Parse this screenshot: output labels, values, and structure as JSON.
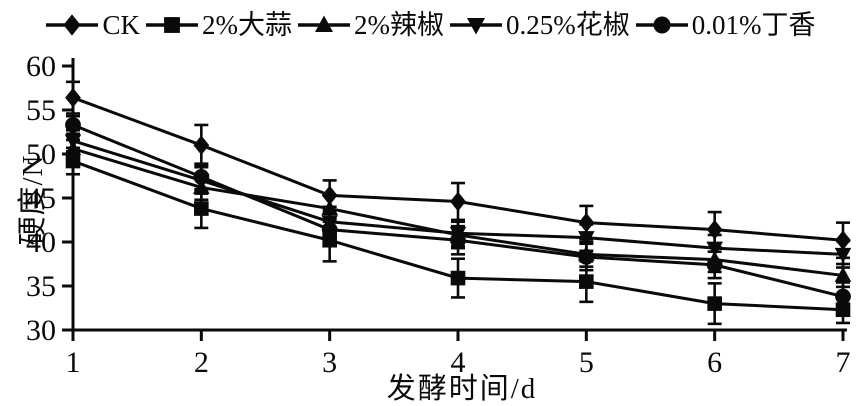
{
  "chart_data": {
    "type": "line",
    "title": "",
    "xlabel": "发酵时间/d",
    "ylabel": "硬度/N",
    "x": [
      1,
      2,
      3,
      4,
      5,
      6,
      7
    ],
    "xlim": [
      1,
      7
    ],
    "ylim": [
      30,
      60
    ],
    "xticks": [
      1,
      2,
      3,
      4,
      5,
      6,
      7
    ],
    "yticks": [
      30,
      35,
      40,
      45,
      50,
      55,
      60
    ],
    "grid": false,
    "legend_position": "top",
    "line_color": "#0a0a0a",
    "error_bars": true,
    "series": [
      {
        "name": "CK",
        "marker": "diamond",
        "values": [
          56.4,
          51.0,
          45.3,
          44.6,
          42.2,
          41.4,
          40.2
        ],
        "errors": [
          1.8,
          2.3,
          1.7,
          2.1,
          1.9,
          2.0,
          2.0
        ]
      },
      {
        "name": "2%大蒜",
        "marker": "square",
        "values": [
          49.2,
          43.8,
          40.2,
          35.9,
          35.5,
          33.0,
          32.3
        ],
        "errors": [
          1.5,
          2.2,
          2.4,
          2.2,
          2.3,
          2.3,
          1.5
        ]
      },
      {
        "name": "2%辣椒",
        "marker": "triangle-up",
        "values": [
          50.6,
          46.2,
          43.8,
          40.8,
          38.6,
          38.0,
          36.2
        ],
        "errors": [
          1.0,
          1.4,
          1.5,
          1.5,
          1.4,
          1.4,
          1.3
        ]
      },
      {
        "name": "0.25%花椒",
        "marker": "triangle-down",
        "values": [
          51.5,
          47.0,
          42.3,
          41.0,
          40.5,
          39.3,
          38.6
        ],
        "errors": [
          1.2,
          1.5,
          1.7,
          1.5,
          1.5,
          1.5,
          1.5
        ]
      },
      {
        "name": "0.01%丁香",
        "marker": "circle",
        "values": [
          53.3,
          47.4,
          41.4,
          40.2,
          38.3,
          37.4,
          33.8
        ],
        "errors": [
          1.0,
          1.5,
          1.8,
          1.6,
          1.5,
          1.5,
          1.6
        ]
      }
    ]
  }
}
